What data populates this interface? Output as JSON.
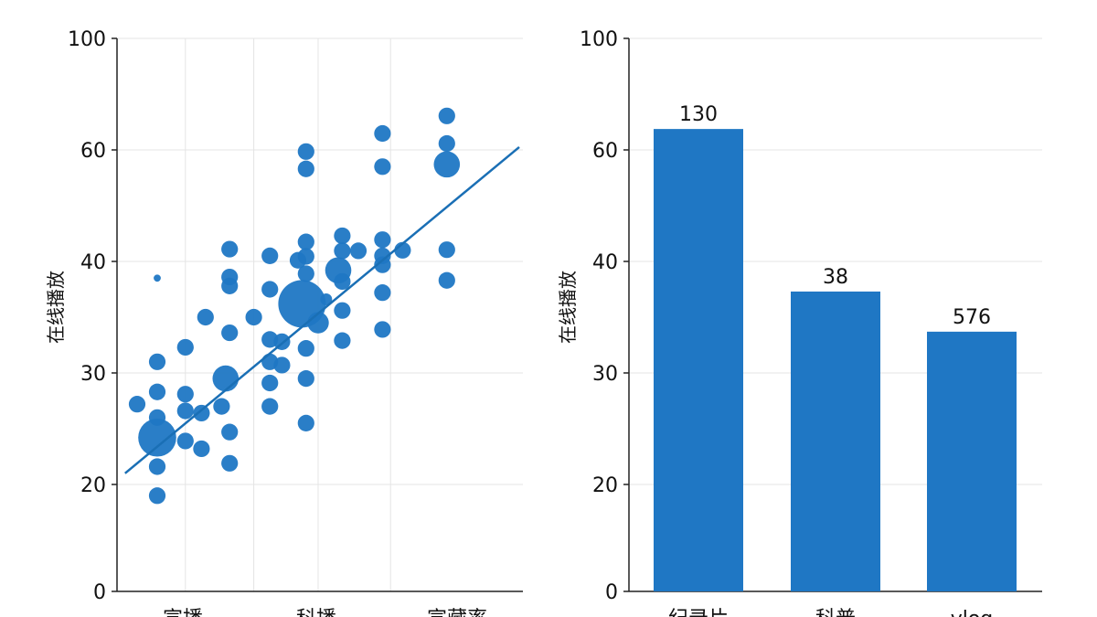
{
  "chart_data": [
    {
      "type": "scatter",
      "ylabel": "在线播放",
      "categories": [
        "宣播",
        "科播",
        "宣藏率"
      ],
      "yticks": [
        "0",
        "20",
        "30",
        "40",
        "60",
        "100"
      ],
      "grid": true,
      "trendline": {
        "x": [
          0.2,
          10.0
        ],
        "y": [
          21,
          61
        ]
      },
      "points": [
        {
          "x": 1.0,
          "y": 38.5,
          "s": 3
        },
        {
          "x": 0.5,
          "y": 27.2,
          "s": 7
        },
        {
          "x": 1.0,
          "y": 31.0,
          "s": 7
        },
        {
          "x": 1.0,
          "y": 28.3,
          "s": 7
        },
        {
          "x": 1.0,
          "y": 26.0,
          "s": 7
        },
        {
          "x": 1.0,
          "y": 24.2,
          "s": 16
        },
        {
          "x": 1.0,
          "y": 21.6,
          "s": 7
        },
        {
          "x": 1.0,
          "y": 17.9,
          "s": 7
        },
        {
          "x": 1.7,
          "y": 32.3,
          "s": 7
        },
        {
          "x": 1.7,
          "y": 28.1,
          "s": 7
        },
        {
          "x": 1.7,
          "y": 26.6,
          "s": 7
        },
        {
          "x": 1.7,
          "y": 23.9,
          "s": 7
        },
        {
          "x": 2.1,
          "y": 26.4,
          "s": 7
        },
        {
          "x": 2.1,
          "y": 23.2,
          "s": 7
        },
        {
          "x": 2.2,
          "y": 35.0,
          "s": 7
        },
        {
          "x": 2.6,
          "y": 27.0,
          "s": 7
        },
        {
          "x": 2.8,
          "y": 42.2,
          "s": 7
        },
        {
          "x": 2.8,
          "y": 38.6,
          "s": 7
        },
        {
          "x": 2.8,
          "y": 37.8,
          "s": 7
        },
        {
          "x": 2.8,
          "y": 33.6,
          "s": 7
        },
        {
          "x": 2.7,
          "y": 29.5,
          "s": 11
        },
        {
          "x": 2.8,
          "y": 24.7,
          "s": 7
        },
        {
          "x": 2.8,
          "y": 21.9,
          "s": 7
        },
        {
          "x": 3.4,
          "y": 35.0,
          "s": 7
        },
        {
          "x": 3.8,
          "y": 41.0,
          "s": 7
        },
        {
          "x": 3.8,
          "y": 37.5,
          "s": 7
        },
        {
          "x": 3.8,
          "y": 33.0,
          "s": 7
        },
        {
          "x": 3.8,
          "y": 31.0,
          "s": 7
        },
        {
          "x": 3.8,
          "y": 29.1,
          "s": 7
        },
        {
          "x": 3.8,
          "y": 27.0,
          "s": 7
        },
        {
          "x": 4.1,
          "y": 32.8,
          "s": 7
        },
        {
          "x": 4.1,
          "y": 30.7,
          "s": 7
        },
        {
          "x": 4.5,
          "y": 40.2,
          "s": 7
        },
        {
          "x": 4.7,
          "y": 59.7,
          "s": 7
        },
        {
          "x": 4.7,
          "y": 56.6,
          "s": 7
        },
        {
          "x": 4.7,
          "y": 43.5,
          "s": 7
        },
        {
          "x": 4.7,
          "y": 40.9,
          "s": 7
        },
        {
          "x": 4.7,
          "y": 38.9,
          "s": 7
        },
        {
          "x": 4.6,
          "y": 36.2,
          "s": 20
        },
        {
          "x": 4.7,
          "y": 32.2,
          "s": 7
        },
        {
          "x": 4.7,
          "y": 29.5,
          "s": 7
        },
        {
          "x": 4.7,
          "y": 25.5,
          "s": 7
        },
        {
          "x": 5.0,
          "y": 34.5,
          "s": 9
        },
        {
          "x": 5.2,
          "y": 36.6,
          "s": 5
        },
        {
          "x": 5.6,
          "y": 44.6,
          "s": 7
        },
        {
          "x": 5.6,
          "y": 41.9,
          "s": 7
        },
        {
          "x": 5.5,
          "y": 39.2,
          "s": 11
        },
        {
          "x": 5.6,
          "y": 38.2,
          "s": 7
        },
        {
          "x": 5.6,
          "y": 35.6,
          "s": 7
        },
        {
          "x": 5.6,
          "y": 32.9,
          "s": 7
        },
        {
          "x": 6.0,
          "y": 41.9,
          "s": 7
        },
        {
          "x": 6.6,
          "y": 65.9,
          "s": 7
        },
        {
          "x": 6.6,
          "y": 57.0,
          "s": 7
        },
        {
          "x": 6.6,
          "y": 43.9,
          "s": 7
        },
        {
          "x": 6.6,
          "y": 41.0,
          "s": 7
        },
        {
          "x": 6.6,
          "y": 39.7,
          "s": 7
        },
        {
          "x": 6.6,
          "y": 37.2,
          "s": 7
        },
        {
          "x": 6.6,
          "y": 33.9,
          "s": 7
        },
        {
          "x": 7.1,
          "y": 42.0,
          "s": 7
        },
        {
          "x": 8.2,
          "y": 72.2,
          "s": 7
        },
        {
          "x": 8.2,
          "y": 62.3,
          "s": 7
        },
        {
          "x": 8.2,
          "y": 57.4,
          "s": 11
        },
        {
          "x": 8.2,
          "y": 42.1,
          "s": 7
        },
        {
          "x": 8.2,
          "y": 38.3,
          "s": 7
        }
      ]
    },
    {
      "type": "bar",
      "ylabel": "在线播放",
      "categories": [
        "纪录片",
        "科普",
        "vlog"
      ],
      "values": [
        67.5,
        37.3,
        33.7
      ],
      "data_labels": [
        "130",
        "38",
        "576"
      ],
      "yticks": [
        "0",
        "20",
        "30",
        "40",
        "60",
        "100"
      ],
      "grid": true
    }
  ],
  "colors": {
    "primary": "#1f77c4",
    "trend": "#1a6fb5",
    "grid": "#e4e4e4",
    "axis": "#222222"
  }
}
